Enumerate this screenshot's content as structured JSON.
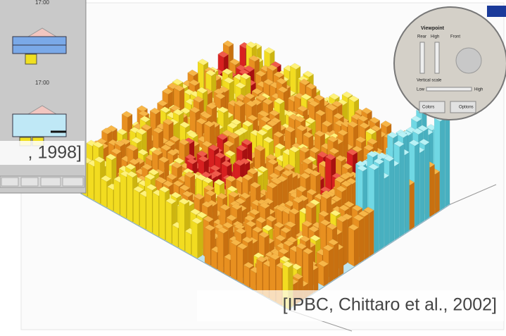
{
  "left_panel": {
    "time_top": "17:00",
    "time_middle": "17:00",
    "citation": ", 1998]"
  },
  "control_panel": {
    "title": "Viewpoint",
    "rear": "Rear",
    "high": "High",
    "front": "Front",
    "vertical_scale": "Vertical scale",
    "low": "Low",
    "high_scale": "High",
    "colors": "Colors",
    "options": "Options"
  },
  "citation": "[IPBC, Chittaro et al., 2002]"
}
